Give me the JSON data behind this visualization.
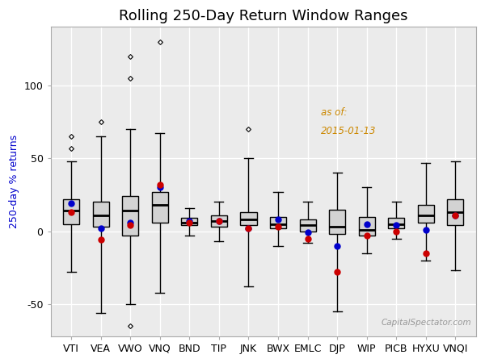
{
  "title": "Rolling 250-Day Return Window Ranges",
  "ylabel": "250-day % returns",
  "annotation_line1": "as of:",
  "annotation_line2": "2015-01-13",
  "watermark": "CapitalSpectator.com",
  "tickers": [
    "VTI",
    "VEA",
    "VWO",
    "VNQ",
    "BND",
    "TIP",
    "JNK",
    "BWX",
    "EMLC",
    "DJP",
    "WIP",
    "PICB",
    "HYXU",
    "VNQI"
  ],
  "box_stats": {
    "VTI": {
      "q1": 5,
      "med": 14,
      "q3": 22,
      "whisker_lo": -28,
      "whisker_hi": 48,
      "blue_dot": 19,
      "red_dot": 13,
      "fliers_hi": [
        57,
        65
      ],
      "fliers_lo": []
    },
    "VEA": {
      "q1": 3,
      "med": 11,
      "q3": 20,
      "whisker_lo": -56,
      "whisker_hi": 65,
      "blue_dot": 2,
      "red_dot": -6,
      "fliers_hi": [
        75
      ],
      "fliers_lo": []
    },
    "VWO": {
      "q1": -3,
      "med": 14,
      "q3": 24,
      "whisker_lo": -50,
      "whisker_hi": 70,
      "blue_dot": 6,
      "red_dot": 4,
      "fliers_hi": [
        105,
        120
      ],
      "fliers_lo": [
        -65
      ]
    },
    "VNQ": {
      "q1": 6,
      "med": 18,
      "q3": 27,
      "whisker_lo": -42,
      "whisker_hi": 67,
      "blue_dot": 30,
      "red_dot": 32,
      "fliers_hi": [
        130
      ],
      "fliers_lo": []
    },
    "BND": {
      "q1": 4,
      "med": 6,
      "q3": 9,
      "whisker_lo": -3,
      "whisker_hi": 16,
      "blue_dot": 7,
      "red_dot": 6,
      "fliers_hi": [],
      "fliers_lo": []
    },
    "TIP": {
      "q1": 3,
      "med": 7,
      "q3": 11,
      "whisker_lo": -7,
      "whisker_hi": 20,
      "blue_dot": 7,
      "red_dot": 7,
      "fliers_hi": [],
      "fliers_lo": []
    },
    "JNK": {
      "q1": 4,
      "med": 8,
      "q3": 13,
      "whisker_lo": -38,
      "whisker_hi": 50,
      "blue_dot": 2,
      "red_dot": 2,
      "fliers_hi": [
        70
      ],
      "fliers_lo": []
    },
    "BWX": {
      "q1": 2,
      "med": 5,
      "q3": 10,
      "whisker_lo": -10,
      "whisker_hi": 27,
      "blue_dot": 8,
      "red_dot": 3,
      "fliers_hi": [],
      "fliers_lo": []
    },
    "EMLC": {
      "q1": 0,
      "med": 4,
      "q3": 8,
      "whisker_lo": -8,
      "whisker_hi": 20,
      "blue_dot": -1,
      "red_dot": -5,
      "fliers_hi": [],
      "fliers_lo": []
    },
    "DJP": {
      "q1": -2,
      "med": 3,
      "q3": 15,
      "whisker_lo": -55,
      "whisker_hi": 40,
      "blue_dot": -10,
      "red_dot": -28,
      "fliers_hi": [],
      "fliers_lo": []
    },
    "WIP": {
      "q1": -3,
      "med": 1,
      "q3": 10,
      "whisker_lo": -15,
      "whisker_hi": 30,
      "blue_dot": 5,
      "red_dot": -3,
      "fliers_hi": [],
      "fliers_lo": []
    },
    "PICB": {
      "q1": 2,
      "med": 5,
      "q3": 9,
      "whisker_lo": -5,
      "whisker_hi": 20,
      "blue_dot": 4,
      "red_dot": 0,
      "fliers_hi": [],
      "fliers_lo": []
    },
    "HYXU": {
      "q1": 6,
      "med": 11,
      "q3": 18,
      "whisker_lo": -20,
      "whisker_hi": 47,
      "blue_dot": 1,
      "red_dot": -15,
      "fliers_hi": [],
      "fliers_lo": []
    },
    "VNQI": {
      "q1": 4,
      "med": 13,
      "q3": 22,
      "whisker_lo": -27,
      "whisker_hi": 48,
      "blue_dot": 11,
      "red_dot": 11,
      "fliers_hi": [],
      "fliers_lo": []
    }
  },
  "ylim": [
    -72,
    140
  ],
  "yticks": [
    -50,
    0,
    50,
    100
  ],
  "fig_bg": "#ffffff",
  "plot_bg": "#ebebeb",
  "box_fill": "#d3d3d3",
  "box_edge": "#000000",
  "median_color": "#000000",
  "whisker_color": "#000000",
  "blue_dot_color": "#0000cc",
  "red_dot_color": "#cc0000",
  "grid_color": "#ffffff",
  "annotation_color": "#cc8800",
  "ylabel_color": "#0000cc",
  "title_fontsize": 13,
  "label_fontsize": 9,
  "tick_fontsize": 9,
  "watermark_color": "#999999",
  "box_width": 0.55
}
